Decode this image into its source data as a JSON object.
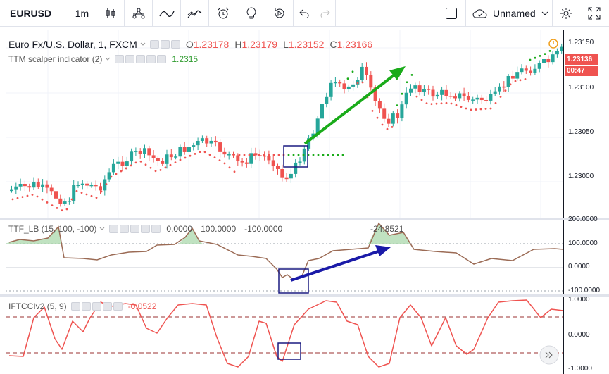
{
  "toolbar": {
    "symbol": "EURUSD",
    "interval": "1m",
    "layout_name": "Unnamed"
  },
  "main_legend": {
    "title": "Euro Fx/U.S. Dollar, 1, FXCM",
    "o_label": "O",
    "o_value": "1.23178",
    "h_label": "H",
    "h_value": "1.23179",
    "l_label": "L",
    "l_value": "1.23152",
    "c_label": "C",
    "c_value": "1.23166",
    "indicator": "TTM scalper indicator (2)",
    "indicator_value": "1.2315"
  },
  "main_axis": {
    "ticks": [
      "1.23150",
      "1.23100",
      "1.23050",
      "1.23000"
    ],
    "last_price": "1.23136",
    "countdown": "00:47"
  },
  "ttf_legend": {
    "name": "TTF_LB (15, 100, -100)",
    "v1": "0.0000",
    "v2": "100.0000",
    "v3": "-100.0000",
    "peak": "-24.8521"
  },
  "ttf_axis": {
    "ticks": [
      "200.0000",
      "100.0000",
      "0.0000",
      "-100.0000"
    ]
  },
  "ift_legend": {
    "name": "IFTCCIv2 (5, 9)",
    "value": "-0.0522"
  },
  "ift_axis": {
    "ticks": [
      "1.0000",
      "0.0000",
      "-1.0000"
    ]
  },
  "colors": {
    "up": "#26a69a",
    "down": "#ef5350",
    "ttf_line": "#9b6b55",
    "ttf_fill": "#a5d6a7",
    "ift_line": "#ef5350",
    "arrow_green": "#1aab1a",
    "arrow_blue": "#1a1aa8"
  }
}
